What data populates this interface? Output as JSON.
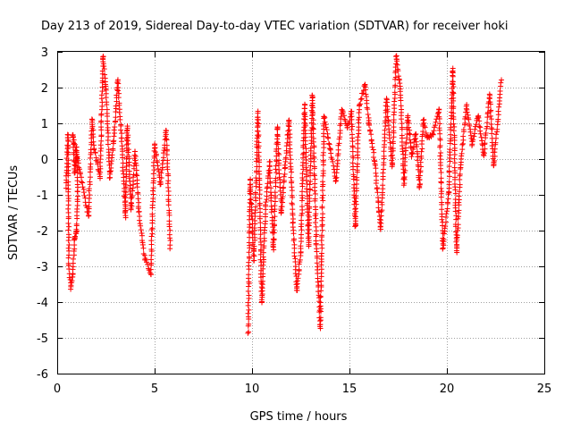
{
  "chart_data": {
    "type": "scatter",
    "title": "Day 213 of 2019, Sidereal Day-to-day VTEC variation (SDTVAR) for receiver hoki",
    "xlabel": "GPS time / hours",
    "ylabel": "SDTVAR / TECUs",
    "xlim": [
      0,
      25
    ],
    "ylim": [
      -6,
      3
    ],
    "xticks": [
      "0",
      "5",
      "10",
      "15",
      "20",
      "25"
    ],
    "xtick_values": [
      0,
      5,
      10,
      15,
      20,
      25
    ],
    "yticks": [
      "-6",
      "-5",
      "-4",
      "-3",
      "-2",
      "-1",
      "0",
      "1",
      "2",
      "3"
    ],
    "ytick_values": [
      -6,
      -5,
      -4,
      -3,
      -2,
      -1,
      0,
      1,
      2,
      3
    ],
    "grid": true,
    "marker": "+",
    "marker_color": "#ff0000",
    "series": [
      {
        "name": "SDTVAR",
        "track_points": [
          [
            0.45,
            -0.8
          ],
          [
            0.55,
            0.7
          ],
          [
            0.6,
            -3.0
          ],
          [
            0.7,
            -3.6
          ],
          [
            0.8,
            -3.2
          ],
          [
            0.9,
            -2.2
          ],
          [
            1.0,
            -2.0
          ],
          [
            1.05,
            -0.9
          ],
          [
            1.0,
            0.3
          ],
          [
            0.9,
            -0.4
          ],
          [
            0.8,
            0.7
          ],
          [
            1.6,
            -1.6
          ],
          [
            1.8,
            1.1
          ],
          [
            1.9,
            0.3
          ],
          [
            2.2,
            -0.5
          ],
          [
            2.35,
            2.9
          ],
          [
            2.5,
            2.0
          ],
          [
            2.7,
            -0.5
          ],
          [
            2.9,
            0.5
          ],
          [
            3.1,
            2.2
          ],
          [
            3.3,
            0.6
          ],
          [
            3.5,
            -1.6
          ],
          [
            3.6,
            0.9
          ],
          [
            3.8,
            -1.4
          ],
          [
            4.0,
            0.2
          ],
          [
            4.2,
            -1.5
          ],
          [
            4.5,
            -2.8
          ],
          [
            4.8,
            -3.2
          ],
          [
            5.0,
            0.4
          ],
          [
            5.3,
            -0.7
          ],
          [
            5.6,
            0.8
          ],
          [
            5.8,
            -2.5
          ],
          [
            9.8,
            -4.9
          ],
          [
            9.9,
            -0.6
          ],
          [
            10.1,
            -2.8
          ],
          [
            10.3,
            1.3
          ],
          [
            10.5,
            -4.0
          ],
          [
            10.7,
            -1.3
          ],
          [
            10.9,
            -0.1
          ],
          [
            11.1,
            -2.5
          ],
          [
            11.3,
            0.9
          ],
          [
            11.5,
            -1.5
          ],
          [
            11.7,
            -0.2
          ],
          [
            11.9,
            1.1
          ],
          [
            12.1,
            -1.8
          ],
          [
            12.3,
            -3.7
          ],
          [
            12.5,
            -2.6
          ],
          [
            12.7,
            1.5
          ],
          [
            12.9,
            -2.4
          ],
          [
            13.1,
            1.8
          ],
          [
            13.3,
            -2.4
          ],
          [
            13.5,
            -4.7
          ],
          [
            13.7,
            1.2
          ],
          [
            14.0,
            0.3
          ],
          [
            14.3,
            -0.6
          ],
          [
            14.6,
            1.4
          ],
          [
            14.9,
            0.9
          ],
          [
            15.1,
            1.3
          ],
          [
            15.3,
            -1.9
          ],
          [
            15.5,
            1.5
          ],
          [
            15.8,
            2.1
          ],
          [
            16.0,
            1.0
          ],
          [
            16.3,
            -0.1
          ],
          [
            16.6,
            -2.0
          ],
          [
            16.9,
            1.7
          ],
          [
            17.2,
            -0.2
          ],
          [
            17.4,
            2.9
          ],
          [
            17.6,
            2.0
          ],
          [
            17.8,
            -0.7
          ],
          [
            18.0,
            1.2
          ],
          [
            18.2,
            0.1
          ],
          [
            18.4,
            0.7
          ],
          [
            18.6,
            -0.8
          ],
          [
            18.8,
            1.1
          ],
          [
            19.0,
            0.6
          ],
          [
            19.3,
            0.7
          ],
          [
            19.6,
            1.4
          ],
          [
            19.8,
            -2.5
          ],
          [
            20.1,
            -0.9
          ],
          [
            20.3,
            2.5
          ],
          [
            20.5,
            -2.6
          ],
          [
            20.7,
            -0.2
          ],
          [
            21.0,
            1.5
          ],
          [
            21.3,
            0.4
          ],
          [
            21.6,
            1.2
          ],
          [
            21.9,
            0.1
          ],
          [
            22.2,
            1.8
          ],
          [
            22.4,
            -0.2
          ],
          [
            22.8,
            2.2
          ]
        ]
      }
    ]
  }
}
